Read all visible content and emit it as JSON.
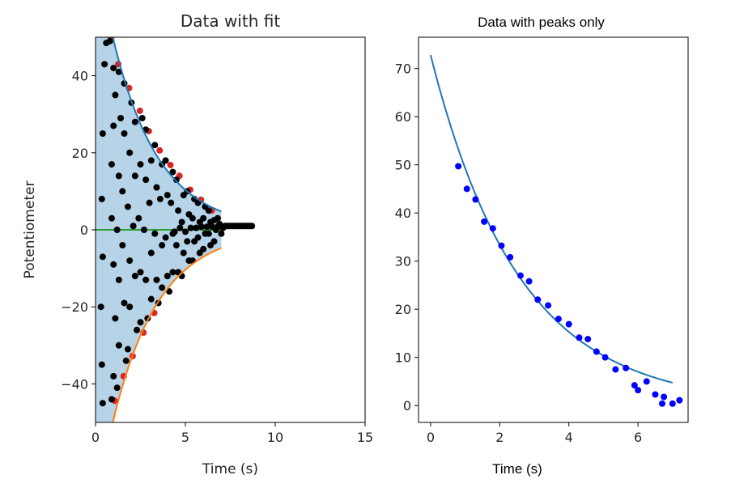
{
  "chart_data": [
    {
      "type": "scatter",
      "title": "Data with fit",
      "xlabel": "Time (s)",
      "ylabel": "Potentiometer",
      "xlim": [
        0,
        15
      ],
      "ylim": [
        -50,
        50
      ],
      "xticks": [
        "0",
        "5",
        "10",
        "15"
      ],
      "yticks": [
        "−40",
        "−20",
        "0",
        "20",
        "40"
      ],
      "xtick_values": [
        0,
        5,
        10,
        15
      ],
      "ytick_values": [
        -40,
        -20,
        0,
        20,
        40
      ],
      "colors": {
        "fill": "#b7d3e8",
        "upper": "#1f77b4",
        "lower": "#ff7f0e",
        "zero": "#2ca02c",
        "peak": "#d62728",
        "point": "#000000"
      },
      "envelope": {
        "amplitude": 72.8,
        "decay": 0.39,
        "t_start": 0,
        "t_end": 7
      },
      "zero_line": {
        "x_start": 0,
        "x_end": 7,
        "y": 0
      },
      "peaks": [
        {
          "x": 0.8,
          "y": 49.5
        },
        {
          "x": 1.2,
          "y": 42.8
        },
        {
          "x": 1.8,
          "y": 36.6
        },
        {
          "x": 2.4,
          "y": 30.7
        },
        {
          "x": 2.9,
          "y": 25.4
        },
        {
          "x": 3.5,
          "y": 20.4
        },
        {
          "x": 4.1,
          "y": 16.6
        },
        {
          "x": 4.6,
          "y": 13.8
        },
        {
          "x": 5.2,
          "y": 10.2
        },
        {
          "x": 5.8,
          "y": 7.6
        },
        {
          "x": 6.4,
          "y": 4.8
        },
        {
          "x": 1.0,
          "y": -44.6
        },
        {
          "x": 1.5,
          "y": -38.2
        },
        {
          "x": 2.0,
          "y": -33.0
        },
        {
          "x": 2.6,
          "y": -26.9
        },
        {
          "x": 3.2,
          "y": -21.8
        }
      ],
      "points": [
        {
          "x": 0.4,
          "y": -45.0
        },
        {
          "x": 0.35,
          "y": -35.0
        },
        {
          "x": 0.3,
          "y": -20.0
        },
        {
          "x": 0.4,
          "y": -7.0
        },
        {
          "x": 0.35,
          "y": 8.0
        },
        {
          "x": 0.4,
          "y": 25.0
        },
        {
          "x": 0.5,
          "y": 43.0
        },
        {
          "x": 0.6,
          "y": 48.5
        },
        {
          "x": 0.8,
          "y": 49.0
        },
        {
          "x": 1.0,
          "y": 42.0
        },
        {
          "x": 1.1,
          "y": 35.0
        },
        {
          "x": 1.0,
          "y": 27.0
        },
        {
          "x": 0.9,
          "y": 17.0
        },
        {
          "x": 0.9,
          "y": 3.0
        },
        {
          "x": 1.0,
          "y": -9.0
        },
        {
          "x": 1.1,
          "y": -23.0
        },
        {
          "x": 1.0,
          "y": -38.0
        },
        {
          "x": 0.9,
          "y": -44.0
        },
        {
          "x": 1.2,
          "y": -41.0
        },
        {
          "x": 1.3,
          "y": -30.0
        },
        {
          "x": 1.3,
          "y": -13.0
        },
        {
          "x": 1.2,
          "y": 0.0
        },
        {
          "x": 1.3,
          "y": 14.0
        },
        {
          "x": 1.4,
          "y": 29.0
        },
        {
          "x": 1.3,
          "y": 41.0
        },
        {
          "x": 1.6,
          "y": 38.0
        },
        {
          "x": 1.6,
          "y": 25.0
        },
        {
          "x": 1.5,
          "y": 10.0
        },
        {
          "x": 1.5,
          "y": -4.0
        },
        {
          "x": 1.6,
          "y": -19.0
        },
        {
          "x": 1.7,
          "y": -34.0
        },
        {
          "x": 1.8,
          "y": -31.0
        },
        {
          "x": 1.9,
          "y": -20.0
        },
        {
          "x": 1.9,
          "y": -8.0
        },
        {
          "x": 1.8,
          "y": 6.0
        },
        {
          "x": 1.9,
          "y": 20.0
        },
        {
          "x": 2.0,
          "y": 33.0
        },
        {
          "x": 2.2,
          "y": 28.0
        },
        {
          "x": 2.2,
          "y": 14.0
        },
        {
          "x": 2.1,
          "y": 1.0
        },
        {
          "x": 2.2,
          "y": -12.0
        },
        {
          "x": 2.3,
          "y": -26.0
        },
        {
          "x": 2.5,
          "y": -24.0
        },
        {
          "x": 2.5,
          "y": -11.0
        },
        {
          "x": 2.4,
          "y": 3.0
        },
        {
          "x": 2.5,
          "y": 17.0
        },
        {
          "x": 2.6,
          "y": 29.0
        },
        {
          "x": 2.8,
          "y": 26.0
        },
        {
          "x": 2.8,
          "y": 13.0
        },
        {
          "x": 2.7,
          "y": 0.0
        },
        {
          "x": 2.8,
          "y": -13.0
        },
        {
          "x": 2.9,
          "y": -23.0
        },
        {
          "x": 3.1,
          "y": -18.0
        },
        {
          "x": 3.1,
          "y": -6.0
        },
        {
          "x": 3.0,
          "y": 7.0
        },
        {
          "x": 3.1,
          "y": 18.0
        },
        {
          "x": 3.3,
          "y": 22.0
        },
        {
          "x": 3.4,
          "y": 11.0
        },
        {
          "x": 3.3,
          "y": -1.0
        },
        {
          "x": 3.4,
          "y": -13.0
        },
        {
          "x": 3.5,
          "y": -19.0
        },
        {
          "x": 3.7,
          "y": -15.0
        },
        {
          "x": 3.7,
          "y": -4.0
        },
        {
          "x": 3.6,
          "y": 8.0
        },
        {
          "x": 3.7,
          "y": 17.0
        },
        {
          "x": 3.9,
          "y": 18.0
        },
        {
          "x": 4.0,
          "y": 9.0
        },
        {
          "x": 3.9,
          "y": -2.0
        },
        {
          "x": 4.0,
          "y": -12.0
        },
        {
          "x": 4.1,
          "y": -16.0
        },
        {
          "x": 4.3,
          "y": -11.0
        },
        {
          "x": 4.3,
          "y": -1.0
        },
        {
          "x": 4.2,
          "y": 7.0
        },
        {
          "x": 4.3,
          "y": 15.0
        },
        {
          "x": 4.5,
          "y": 13.0
        },
        {
          "x": 4.6,
          "y": 5.0
        },
        {
          "x": 4.5,
          "y": -4.0
        },
        {
          "x": 4.6,
          "y": -11.0
        },
        {
          "x": 4.8,
          "y": -12.0
        },
        {
          "x": 4.9,
          "y": -6.0
        },
        {
          "x": 4.8,
          "y": 2.0
        },
        {
          "x": 4.9,
          "y": 9.0
        },
        {
          "x": 5.1,
          "y": 10.0
        },
        {
          "x": 5.2,
          "y": 4.0
        },
        {
          "x": 5.1,
          "y": -3.0
        },
        {
          "x": 5.2,
          "y": -8.0
        },
        {
          "x": 5.4,
          "y": -8.0
        },
        {
          "x": 5.5,
          "y": -3.0
        },
        {
          "x": 5.4,
          "y": 3.0
        },
        {
          "x": 5.5,
          "y": 8.0
        },
        {
          "x": 5.7,
          "y": 7.0
        },
        {
          "x": 5.8,
          "y": 2.0
        },
        {
          "x": 5.7,
          "y": -2.0
        },
        {
          "x": 5.8,
          "y": -6.0
        },
        {
          "x": 6.0,
          "y": -5.0
        },
        {
          "x": 6.1,
          "y": -1.0
        },
        {
          "x": 6.0,
          "y": 3.0
        },
        {
          "x": 6.1,
          "y": 6.0
        },
        {
          "x": 6.3,
          "y": 5.0
        },
        {
          "x": 6.4,
          "y": 2.0
        },
        {
          "x": 6.3,
          "y": -1.0
        },
        {
          "x": 6.4,
          "y": -4.0
        },
        {
          "x": 6.6,
          "y": -3.0
        },
        {
          "x": 6.7,
          "y": 0.0
        },
        {
          "x": 6.6,
          "y": 2.5
        },
        {
          "x": 6.8,
          "y": 3.0
        },
        {
          "x": 6.9,
          "y": 1.5
        },
        {
          "x": 7.0,
          "y": -1.0
        },
        {
          "x": 7.1,
          "y": 0.5
        },
        {
          "x": 7.2,
          "y": 1.0
        },
        {
          "x": 7.3,
          "y": 1.0
        },
        {
          "x": 7.4,
          "y": 1.0
        },
        {
          "x": 7.5,
          "y": 1.0
        },
        {
          "x": 7.6,
          "y": 1.0
        },
        {
          "x": 7.7,
          "y": 1.0
        },
        {
          "x": 7.8,
          "y": 1.0
        },
        {
          "x": 7.9,
          "y": 1.0
        },
        {
          "x": 8.0,
          "y": 1.0
        },
        {
          "x": 8.1,
          "y": 1.0
        },
        {
          "x": 8.2,
          "y": 1.0
        },
        {
          "x": 8.3,
          "y": 1.0
        },
        {
          "x": 8.4,
          "y": 1.0
        },
        {
          "x": 8.5,
          "y": 1.0
        },
        {
          "x": 8.6,
          "y": 1.0
        },
        {
          "x": 8.7,
          "y": 1.0
        },
        {
          "x": 6.2,
          "y": 0.8
        },
        {
          "x": 5.9,
          "y": 0.8
        },
        {
          "x": 6.5,
          "y": 0.8
        },
        {
          "x": 6.8,
          "y": 0.8
        },
        {
          "x": 5.6,
          "y": 0.5
        },
        {
          "x": 5.3,
          "y": 0.5
        },
        {
          "x": 5.0,
          "y": -0.5
        },
        {
          "x": 4.7,
          "y": 0.5
        },
        {
          "x": 4.4,
          "y": -0.5
        }
      ]
    },
    {
      "type": "scatter",
      "title": "Data with peaks only",
      "xlabel": "Time (s)",
      "ylabel": "",
      "xlim": [
        -0.35,
        7.45
      ],
      "ylim": [
        -3.5,
        76.5
      ],
      "xticks": [
        "0",
        "2",
        "4",
        "6"
      ],
      "yticks": [
        "0",
        "10",
        "20",
        "30",
        "40",
        "50",
        "60",
        "70"
      ],
      "xtick_values": [
        0,
        2,
        4,
        6
      ],
      "ytick_values": [
        0,
        10,
        20,
        30,
        40,
        50,
        60,
        70
      ],
      "colors": {
        "fit": "#1f77b4",
        "point": "#0000ff"
      },
      "fit": {
        "amplitude": 72.8,
        "decay": 0.39,
        "t_start": 0,
        "t_end": 7
      },
      "points": [
        {
          "x": 0.8,
          "y": 49.7
        },
        {
          "x": 1.05,
          "y": 45.0
        },
        {
          "x": 1.3,
          "y": 42.8
        },
        {
          "x": 1.55,
          "y": 38.2
        },
        {
          "x": 1.8,
          "y": 36.8
        },
        {
          "x": 2.05,
          "y": 33.2
        },
        {
          "x": 2.3,
          "y": 30.8
        },
        {
          "x": 2.6,
          "y": 27.0
        },
        {
          "x": 2.85,
          "y": 25.8
        },
        {
          "x": 3.1,
          "y": 22.0
        },
        {
          "x": 3.4,
          "y": 20.8
        },
        {
          "x": 3.7,
          "y": 18.0
        },
        {
          "x": 4.0,
          "y": 16.9
        },
        {
          "x": 4.3,
          "y": 14.1
        },
        {
          "x": 4.55,
          "y": 13.8
        },
        {
          "x": 4.8,
          "y": 11.2
        },
        {
          "x": 5.05,
          "y": 10.0
        },
        {
          "x": 5.35,
          "y": 7.5
        },
        {
          "x": 5.65,
          "y": 7.8
        },
        {
          "x": 5.9,
          "y": 4.2
        },
        {
          "x": 6.0,
          "y": 3.2
        },
        {
          "x": 6.25,
          "y": 5.0
        },
        {
          "x": 6.5,
          "y": 2.3
        },
        {
          "x": 6.75,
          "y": 1.8
        },
        {
          "x": 6.7,
          "y": 0.4
        },
        {
          "x": 7.0,
          "y": 0.4
        },
        {
          "x": 7.2,
          "y": 1.1
        }
      ]
    }
  ]
}
